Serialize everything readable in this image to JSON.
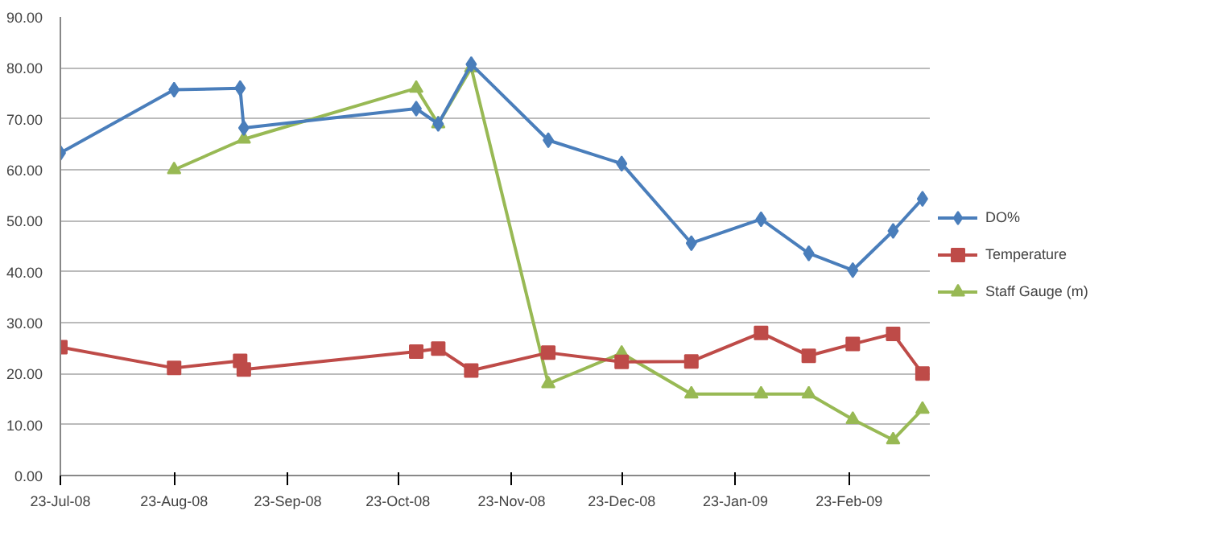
{
  "chart_data": {
    "type": "line",
    "x": [
      "2008-07-23",
      "2008-08-23",
      "2008-09-10",
      "2008-09-11",
      "2008-10-28",
      "2008-11-03",
      "2008-11-12",
      "2008-12-03",
      "2008-12-23",
      "2009-01-11",
      "2009-01-30",
      "2009-02-12",
      "2009-02-24",
      "2009-03-07",
      "2009-03-15"
    ],
    "series": [
      {
        "name": "DO%",
        "color": "#4a7ebb",
        "marker": "diamond",
        "values": [
          63.3,
          75.7,
          76.0,
          68.2,
          72.0,
          69.0,
          80.7,
          65.8,
          61.2,
          45.6,
          50.3,
          43.6,
          40.3,
          48.0,
          54.3
        ]
      },
      {
        "name": "Temperature",
        "color": "#be4b48",
        "marker": "square",
        "values": [
          25.2,
          21.1,
          22.5,
          20.8,
          24.3,
          24.9,
          20.6,
          24.1,
          22.3,
          22.4,
          28.0,
          23.5,
          25.8,
          27.8,
          20.0
        ]
      },
      {
        "name": "Staff Gauge (m)",
        "color": "#98b954",
        "marker": "triangle",
        "values": [
          null,
          60.0,
          null,
          66.0,
          76.0,
          69.0,
          80.0,
          18.0,
          24.0,
          16.0,
          16.0,
          16.0,
          11.0,
          7.0,
          13.0
        ]
      }
    ],
    "xlim": [
      "2008-07-23",
      "2009-03-17"
    ],
    "xticks": [
      {
        "value": "2008-07-23",
        "label": "23-Jul-08"
      },
      {
        "value": "2008-08-23",
        "label": "23-Aug-08"
      },
      {
        "value": "2008-09-23",
        "label": "23-Sep-08"
      },
      {
        "value": "2008-10-23",
        "label": "23-Oct-08"
      },
      {
        "value": "2008-11-23",
        "label": "23-Nov-08"
      },
      {
        "value": "2008-12-23",
        "label": "23-Dec-08"
      },
      {
        "value": "2009-01-23",
        "label": "23-Jan-09"
      },
      {
        "value": "2009-02-23",
        "label": "23-Feb-09"
      }
    ],
    "ylim": [
      0,
      90
    ],
    "yticks": [
      {
        "value": 0,
        "label": "0.00"
      },
      {
        "value": 10,
        "label": "10.00"
      },
      {
        "value": 20,
        "label": "20.00"
      },
      {
        "value": 30,
        "label": "30.00"
      },
      {
        "value": 40,
        "label": "40.00"
      },
      {
        "value": 50,
        "label": "50.00"
      },
      {
        "value": 60,
        "label": "60.00"
      },
      {
        "value": 70,
        "label": "70.00"
      },
      {
        "value": 80,
        "label": "80.00"
      },
      {
        "value": 90,
        "label": "90.00"
      }
    ],
    "grid": "y",
    "legend": "right"
  }
}
